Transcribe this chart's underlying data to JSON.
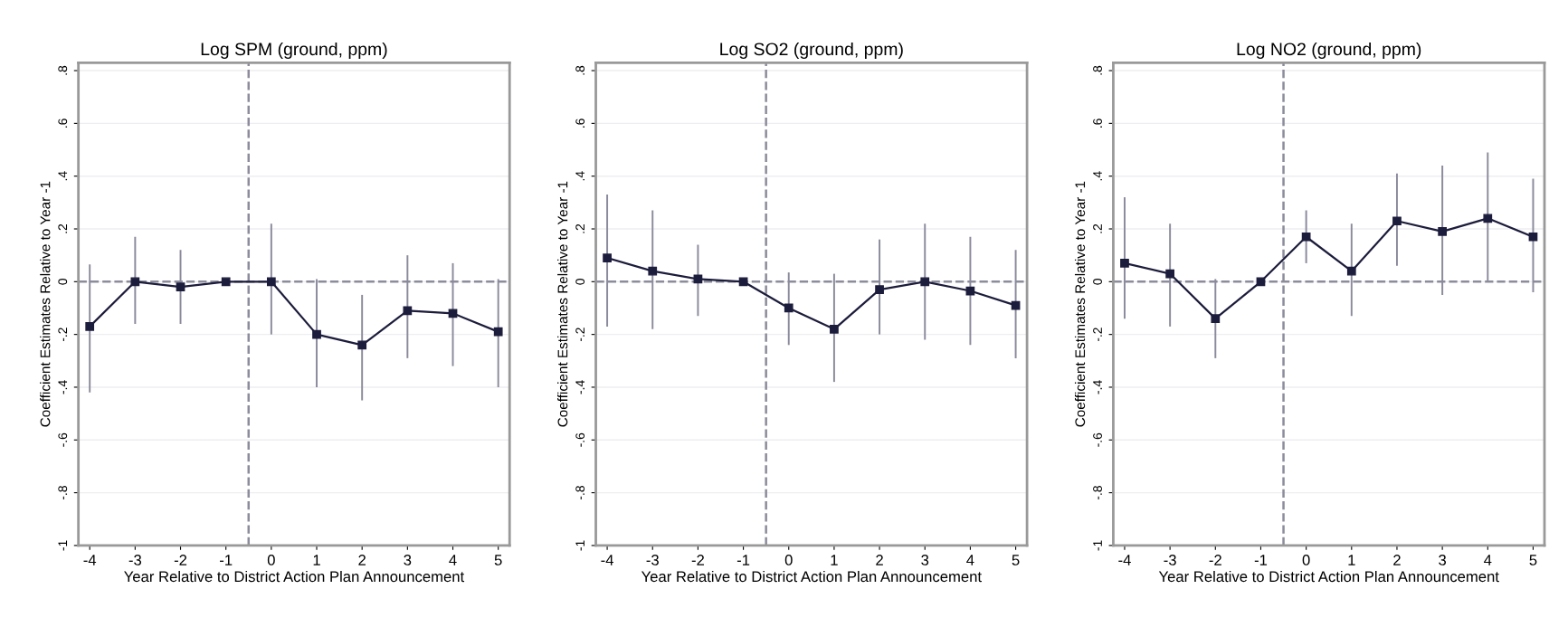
{
  "chart_data": [
    {
      "type": "line",
      "title": "Log SPM (ground, ppm)",
      "xlabel": "Year Relative to District Action Plan Announcement",
      "ylabel": "Coefficient Estimates Relative to Year -1",
      "x": [
        -4,
        -3,
        -2,
        -1,
        0,
        1,
        2,
        3,
        4,
        5
      ],
      "series": [
        {
          "color": "#1c1c3c",
          "values": [
            -0.17,
            0.0,
            -0.02,
            0.0,
            0.0,
            -0.2,
            -0.24,
            -0.11,
            -0.12,
            -0.19
          ],
          "errors": [
            [
              -0.42,
              0.065
            ],
            [
              -0.16,
              0.17
            ],
            [
              -0.16,
              0.12
            ],
            null,
            [
              -0.2,
              0.22
            ],
            [
              -0.4,
              0.01
            ],
            [
              -0.45,
              -0.05
            ],
            [
              -0.29,
              0.1
            ],
            [
              -0.32,
              0.07
            ],
            [
              -0.4,
              0.01
            ]
          ]
        }
      ],
      "xlim": [
        -4.25,
        5.25
      ],
      "xticks": [
        -4,
        -3,
        -2,
        -1,
        0,
        1,
        2,
        3,
        4,
        5
      ],
      "ylim": [
        -1,
        0.83
      ],
      "yticks": [
        {
          "value": -1,
          "label": "-1"
        },
        {
          "value": -0.8,
          "label": "-.8"
        },
        {
          "value": -0.6,
          "label": "-.6"
        },
        {
          "value": -0.4,
          "label": "-.4"
        },
        {
          "value": -0.2,
          "label": "-.2"
        },
        {
          "value": 0,
          "label": "0"
        },
        {
          "value": 0.2,
          "label": ".2"
        },
        {
          "value": 0.4,
          "label": ".4"
        },
        {
          "value": 0.6,
          "label": ".6"
        },
        {
          "value": 0.8,
          "label": ".8"
        }
      ],
      "ref_lines": [
        {
          "axis": "y",
          "value": 0,
          "color": "#8c8c9c",
          "line_style": "dashed"
        },
        {
          "axis": "x",
          "value": -0.5,
          "color": "#8c8c9c",
          "line_style": "dashed"
        }
      ],
      "marker": "square",
      "line_style": "solid",
      "grid": "y"
    },
    {
      "type": "line",
      "title": "Log SO2 (ground, ppm)",
      "xlabel": "Year Relative to District Action Plan Announcement",
      "ylabel": "Coefficient Estimates Relative to Year -1",
      "x": [
        -4,
        -3,
        -2,
        -1,
        0,
        1,
        2,
        3,
        4,
        5
      ],
      "series": [
        {
          "color": "#1c1c3c",
          "values": [
            0.09,
            0.04,
            0.01,
            0.0,
            -0.1,
            -0.18,
            -0.03,
            0.0,
            -0.035,
            -0.09
          ],
          "errors": [
            [
              -0.17,
              0.33
            ],
            [
              -0.18,
              0.27
            ],
            [
              -0.13,
              0.14
            ],
            null,
            [
              -0.24,
              0.035
            ],
            [
              -0.38,
              0.03
            ],
            [
              -0.2,
              0.16
            ],
            [
              -0.22,
              0.22
            ],
            [
              -0.24,
              0.17
            ],
            [
              -0.29,
              0.12
            ]
          ]
        }
      ],
      "xlim": [
        -4.25,
        5.25
      ],
      "xticks": [
        -4,
        -3,
        -2,
        -1,
        0,
        1,
        2,
        3,
        4,
        5
      ],
      "ylim": [
        -1,
        0.83
      ],
      "yticks": [
        {
          "value": -1,
          "label": "-1"
        },
        {
          "value": -0.8,
          "label": "-.8"
        },
        {
          "value": -0.6,
          "label": "-.6"
        },
        {
          "value": -0.4,
          "label": "-.4"
        },
        {
          "value": -0.2,
          "label": "-.2"
        },
        {
          "value": 0,
          "label": "0"
        },
        {
          "value": 0.2,
          "label": ".2"
        },
        {
          "value": 0.4,
          "label": ".4"
        },
        {
          "value": 0.6,
          "label": ".6"
        },
        {
          "value": 0.8,
          "label": ".8"
        }
      ],
      "ref_lines": [
        {
          "axis": "y",
          "value": 0,
          "color": "#8c8c9c",
          "line_style": "dashed"
        },
        {
          "axis": "x",
          "value": -0.5,
          "color": "#8c8c9c",
          "line_style": "dashed"
        }
      ],
      "marker": "square",
      "line_style": "solid",
      "grid": "y"
    },
    {
      "type": "line",
      "title": "Log NO2 (ground, ppm)",
      "xlabel": "Year Relative to District Action Plan Announcement",
      "ylabel": "Coefficient Estimates Relative to Year -1",
      "x": [
        -4,
        -3,
        -2,
        -1,
        0,
        1,
        2,
        3,
        4,
        5
      ],
      "series": [
        {
          "color": "#1c1c3c",
          "values": [
            0.07,
            0.03,
            -0.14,
            0.0,
            0.17,
            0.04,
            0.23,
            0.19,
            0.24,
            0.17
          ],
          "errors": [
            [
              -0.14,
              0.32
            ],
            [
              -0.17,
              0.22
            ],
            [
              -0.29,
              0.01
            ],
            null,
            [
              0.07,
              0.27
            ],
            [
              -0.13,
              0.22
            ],
            [
              0.06,
              0.41
            ],
            [
              -0.05,
              0.44
            ],
            [
              0.0,
              0.49
            ],
            [
              -0.04,
              0.39
            ]
          ]
        }
      ],
      "xlim": [
        -4.25,
        5.25
      ],
      "xticks": [
        -4,
        -3,
        -2,
        -1,
        0,
        1,
        2,
        3,
        4,
        5
      ],
      "ylim": [
        -1,
        0.83
      ],
      "yticks": [
        {
          "value": -1,
          "label": "-1"
        },
        {
          "value": -0.8,
          "label": "-.8"
        },
        {
          "value": -0.6,
          "label": "-.6"
        },
        {
          "value": -0.4,
          "label": "-.4"
        },
        {
          "value": -0.2,
          "label": "-.2"
        },
        {
          "value": 0,
          "label": "0"
        },
        {
          "value": 0.2,
          "label": ".2"
        },
        {
          "value": 0.4,
          "label": ".4"
        },
        {
          "value": 0.6,
          "label": ".6"
        },
        {
          "value": 0.8,
          "label": ".8"
        }
      ],
      "ref_lines": [
        {
          "axis": "y",
          "value": 0,
          "color": "#8c8c9c",
          "line_style": "dashed"
        },
        {
          "axis": "x",
          "value": -0.5,
          "color": "#8c8c9c",
          "line_style": "dashed"
        }
      ],
      "marker": "square",
      "line_style": "solid",
      "grid": "y"
    }
  ]
}
